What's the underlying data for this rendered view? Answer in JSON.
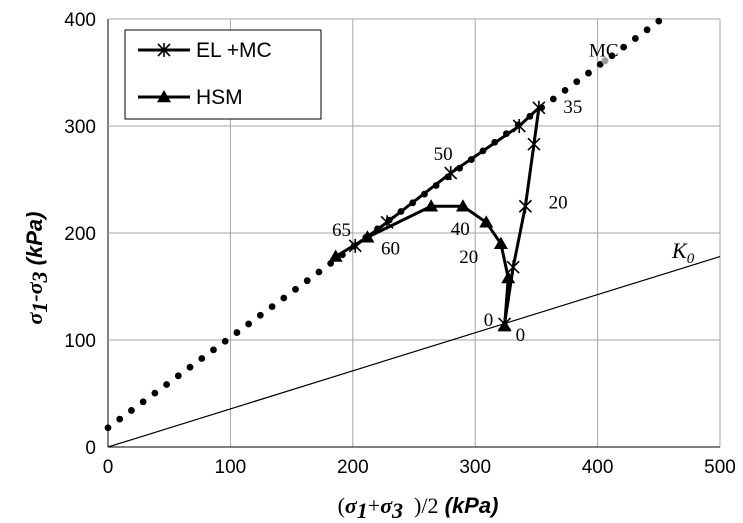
{
  "chart_data": {
    "type": "line",
    "xlim": [
      0,
      500
    ],
    "ylim": [
      0,
      400
    ],
    "x_ticks": [
      "0",
      "100",
      "200",
      "300",
      "400",
      "500"
    ],
    "y_ticks": [
      "0",
      "100",
      "200",
      "300",
      "400"
    ],
    "grid": true,
    "legend_position": "top-left",
    "xlabel": {
      "prefix": "(",
      "s1": "σ",
      "s1_sub": "1",
      "plus": "+",
      "s3": "σ",
      "s3_sub": "3",
      "suffix": "  )/2",
      "unit": " (kPa)"
    },
    "ylabel": {
      "s1": "σ",
      "s1_sub": "1",
      "dash": "-",
      "s3": "σ",
      "s3_sub": "3",
      "unit": " (kPa)"
    },
    "series": [
      {
        "name": "EL +MC",
        "marker": "asterisk",
        "x": [
          324,
          331,
          341,
          348,
          352,
          336,
          280,
          228,
          202
        ],
        "y": [
          115,
          168,
          225,
          283,
          317,
          300,
          256,
          210,
          188
        ]
      },
      {
        "name": "HSM",
        "marker": "triangle",
        "x": [
          324,
          327,
          321,
          309,
          290,
          264,
          212,
          186
        ],
        "y": [
          113,
          158,
          190,
          210,
          225,
          225,
          196,
          178
        ]
      }
    ],
    "reference_lines": [
      {
        "name": "MC",
        "style": "dotted",
        "x": [
          0,
          450
        ],
        "y": [
          18,
          398
        ]
      },
      {
        "name": "K0",
        "label": "K",
        "label_sub": "0",
        "style": "solid",
        "x": [
          0,
          500
        ],
        "y": [
          0,
          178
        ]
      }
    ],
    "annotations": [
      {
        "text": "MC",
        "x": 393,
        "y": 365
      },
      {
        "text": "35",
        "x": 372,
        "y": 312
      },
      {
        "text": "50",
        "x": 266,
        "y": 268
      },
      {
        "text": "40",
        "x": 280,
        "y": 198
      },
      {
        "text": "20",
        "x": 360,
        "y": 223
      },
      {
        "text": "65",
        "x": 183,
        "y": 197
      },
      {
        "text": "60",
        "x": 223,
        "y": 180
      },
      {
        "text": "20",
        "x": 287,
        "y": 172
      },
      {
        "text": "0",
        "x": 307,
        "y": 113
      },
      {
        "text": "0",
        "x": 333,
        "y": 99
      }
    ]
  }
}
